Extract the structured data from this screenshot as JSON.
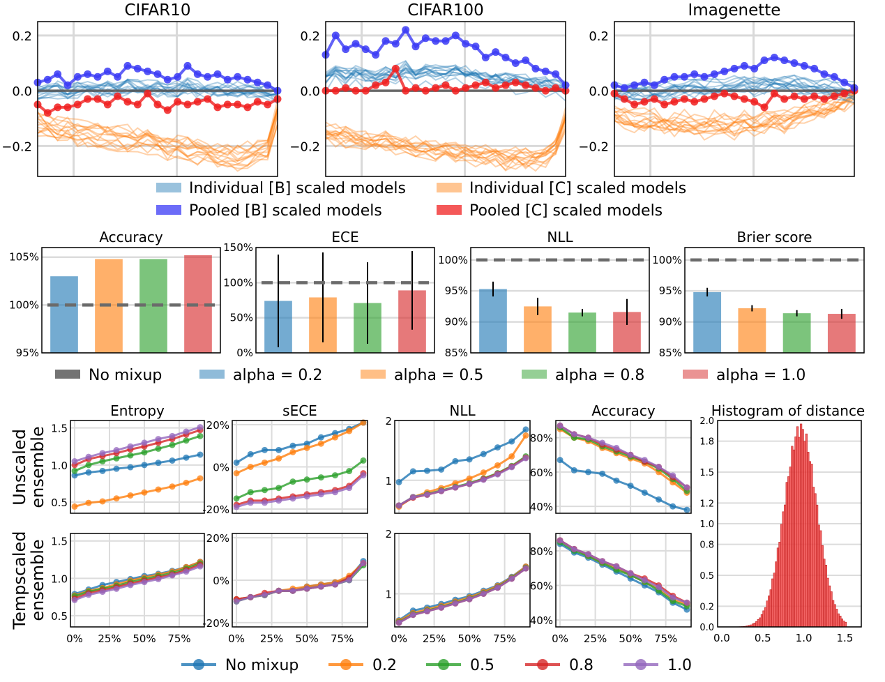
{
  "chart_data": [
    {
      "id": "row1",
      "type": "line",
      "panels": [
        {
          "title": "CIFAR10",
          "pooled_b": [
            0.03,
            0.04,
            0.06,
            0.02,
            0.05,
            0.06,
            0.05,
            0.07,
            0.05,
            0.09,
            0.08,
            0.07,
            0.06,
            0.04,
            0.05,
            0.09,
            0.06,
            0.05,
            0.06,
            0.04,
            0.05,
            0.04,
            0.03,
            0.02,
            0.0
          ],
          "pooled_c": [
            -0.05,
            -0.08,
            -0.06,
            -0.06,
            -0.05,
            -0.03,
            -0.03,
            -0.05,
            -0.02,
            -0.04,
            -0.05,
            -0.01,
            -0.05,
            -0.07,
            -0.04,
            -0.05,
            -0.04,
            -0.03,
            -0.06,
            -0.05,
            -0.05,
            -0.06,
            -0.04,
            -0.05,
            -0.03
          ],
          "ind_c_mean": [
            -0.12,
            -0.13,
            -0.14,
            -0.14,
            -0.15,
            -0.15,
            -0.16,
            -0.16,
            -0.17,
            -0.17,
            -0.18,
            -0.18,
            -0.19,
            -0.2,
            -0.2,
            -0.21,
            -0.22,
            -0.22,
            -0.23,
            -0.23,
            -0.24,
            -0.23,
            -0.22,
            -0.2,
            -0.08
          ]
        },
        {
          "title": "CIFAR100",
          "pooled_b": [
            0.13,
            0.2,
            0.15,
            0.17,
            0.15,
            0.13,
            0.18,
            0.17,
            0.22,
            0.16,
            0.19,
            0.18,
            0.18,
            0.2,
            0.17,
            0.16,
            0.12,
            0.14,
            0.12,
            0.1,
            0.11,
            0.08,
            0.07,
            0.06,
            0.02
          ],
          "pooled_c": [
            0.0,
            0.0,
            0.01,
            0.0,
            0.0,
            0.02,
            0.03,
            0.08,
            0.0,
            0.01,
            0.0,
            0.01,
            0.02,
            0.0,
            0.01,
            0.02,
            0.03,
            0.01,
            0.02,
            0.03,
            0.02,
            0.01,
            0.0,
            0.01,
            0.0
          ],
          "ind_c_mean": [
            -0.15,
            -0.16,
            -0.16,
            -0.17,
            -0.17,
            -0.18,
            -0.18,
            -0.19,
            -0.19,
            -0.2,
            -0.2,
            -0.21,
            -0.21,
            -0.22,
            -0.22,
            -0.23,
            -0.23,
            -0.23,
            -0.24,
            -0.24,
            -0.24,
            -0.24,
            -0.23,
            -0.2,
            -0.1
          ]
        },
        {
          "title": "Imagenette",
          "pooled_b": [
            0.02,
            0.01,
            0.02,
            0.03,
            0.02,
            0.04,
            0.05,
            0.05,
            0.06,
            0.05,
            0.06,
            0.07,
            0.08,
            0.09,
            0.08,
            0.11,
            0.12,
            0.11,
            0.1,
            0.09,
            0.08,
            0.06,
            0.05,
            0.03,
            0.01
          ],
          "pooled_c": [
            -0.01,
            -0.03,
            -0.05,
            -0.04,
            -0.03,
            -0.05,
            -0.04,
            -0.03,
            -0.04,
            -0.03,
            -0.02,
            -0.01,
            -0.02,
            -0.03,
            -0.04,
            -0.06,
            -0.01,
            -0.03,
            -0.02,
            -0.03,
            -0.02,
            -0.03,
            -0.02,
            -0.01,
            0.0
          ],
          "ind_c_mean": [
            -0.09,
            -0.1,
            -0.11,
            -0.11,
            -0.11,
            -0.12,
            -0.12,
            -0.12,
            -0.13,
            -0.13,
            -0.12,
            -0.13,
            -0.13,
            -0.12,
            -0.12,
            -0.12,
            -0.11,
            -0.11,
            -0.1,
            -0.09,
            -0.08,
            -0.07,
            -0.05,
            -0.04,
            -0.02
          ]
        }
      ],
      "yticks": [
        "0.2",
        "0.0",
        "−0.2"
      ],
      "ytick_values": [
        0.2,
        0.0,
        -0.2
      ],
      "ylim": [
        -0.31,
        0.25
      ],
      "legend": [
        "Individual [B] scaled models",
        "Individual [C] scaled models",
        "Pooled [B] scaled models",
        "Pooled [C] scaled models"
      ]
    },
    {
      "id": "row2",
      "type": "bar",
      "categories": [
        "alpha = 0.2",
        "alpha = 0.5",
        "alpha = 0.8",
        "alpha = 1.0"
      ],
      "reference_label": "No mixup",
      "panels": [
        {
          "title": "Accuracy",
          "values": [
            103,
            104.8,
            104.8,
            105.2
          ],
          "err": [
            0,
            0,
            0,
            0
          ],
          "yticks": [
            "105%",
            "100%",
            "95%"
          ],
          "ytick_values": [
            105,
            100,
            95
          ],
          "ylim": [
            95,
            106
          ],
          "ref": 100
        },
        {
          "title": "ECE",
          "values": [
            74,
            79,
            71,
            89
          ],
          "err": [
            66,
            64,
            58,
            56
          ],
          "yticks": [
            "150%",
            "100%",
            "50%",
            "0%"
          ],
          "ytick_values": [
            150,
            100,
            50,
            0
          ],
          "ylim": [
            0,
            150
          ],
          "ref": 100
        },
        {
          "title": "NLL",
          "values": [
            95.3,
            92.5,
            91.5,
            91.6
          ],
          "err": [
            1.2,
            1.4,
            0.6,
            2.1
          ],
          "yticks": [
            "100%",
            "95%",
            "90%",
            "85%"
          ],
          "ytick_values": [
            100,
            95,
            90,
            85
          ],
          "ylim": [
            85,
            102
          ],
          "ref": 100
        },
        {
          "title": "Brier score",
          "values": [
            94.8,
            92.2,
            91.4,
            91.3
          ],
          "err": [
            0.7,
            0.5,
            0.5,
            0.8
          ],
          "yticks": [
            "100%",
            "95%",
            "90%",
            "85%"
          ],
          "ytick_values": [
            100,
            95,
            90,
            85
          ],
          "ylim": [
            85,
            102
          ],
          "ref": 100
        }
      ],
      "legend": [
        "No mixup",
        "alpha = 0.2",
        "alpha = 0.5",
        "alpha = 0.8",
        "alpha = 1.0"
      ]
    },
    {
      "id": "row3",
      "type": "line",
      "x": [
        0,
        10,
        20,
        30,
        40,
        50,
        60,
        70,
        80,
        90
      ],
      "xticks": [
        "0%",
        "25%",
        "50%",
        "75%"
      ],
      "xtick_values": [
        0,
        25,
        50,
        75
      ],
      "row_labels": [
        [
          "Unscaled",
          "ensemble"
        ],
        [
          "Tempscaled",
          "ensemble"
        ]
      ],
      "series_names": [
        "No mixup",
        "0.2",
        "0.5",
        "0.8",
        "1.0"
      ],
      "columns": [
        {
          "title": "Entropy",
          "yticks": [
            "1.5",
            "1.0",
            "0.5"
          ],
          "ytick_values": [
            1.5,
            1.0,
            0.5
          ],
          "ylim": [
            0.35,
            1.6
          ],
          "unscaled": [
            [
              0.86,
              0.9,
              0.92,
              0.95,
              0.97,
              1.0,
              1.03,
              1.06,
              1.1,
              1.14
            ],
            [
              0.44,
              0.49,
              0.51,
              0.55,
              0.59,
              0.63,
              0.67,
              0.71,
              0.76,
              0.82
            ],
            [
              0.92,
              1.0,
              1.05,
              1.09,
              1.13,
              1.17,
              1.22,
              1.27,
              1.33,
              1.39
            ],
            [
              1.0,
              1.08,
              1.12,
              1.16,
              1.21,
              1.25,
              1.3,
              1.35,
              1.41,
              1.47
            ],
            [
              1.05,
              1.11,
              1.16,
              1.2,
              1.25,
              1.3,
              1.35,
              1.39,
              1.45,
              1.51
            ]
          ],
          "tempscaled": [
            [
              0.79,
              0.85,
              0.91,
              0.95,
              0.99,
              1.03,
              1.06,
              1.1,
              1.15,
              1.22
            ],
            [
              0.77,
              0.83,
              0.87,
              0.92,
              0.97,
              1.01,
              1.05,
              1.09,
              1.15,
              1.22
            ],
            [
              0.76,
              0.82,
              0.86,
              0.9,
              0.95,
              0.99,
              1.03,
              1.07,
              1.13,
              1.2
            ],
            [
              0.73,
              0.8,
              0.84,
              0.88,
              0.93,
              0.97,
              1.01,
              1.05,
              1.11,
              1.18
            ],
            [
              0.71,
              0.78,
              0.82,
              0.86,
              0.91,
              0.95,
              0.99,
              1.04,
              1.09,
              1.16
            ]
          ]
        },
        {
          "title": "sECE",
          "yticks": [
            "20%",
            "0%",
            "-20%"
          ],
          "ytick_values": [
            20,
            0,
            -20
          ],
          "ylim": [
            -22,
            22
          ],
          "unscaled": [
            [
              2,
              6,
              8,
              8,
              10,
              11,
              14,
              16,
              18,
              21
            ],
            [
              -3,
              0,
              2,
              4,
              7,
              9,
              11,
              14,
              17,
              21
            ],
            [
              -15,
              -12,
              -11,
              -10,
              -7,
              -6,
              -5,
              -4,
              -2,
              3
            ],
            [
              -18,
              -16,
              -16,
              -15,
              -14,
              -13,
              -12,
              -11,
              -9,
              -3
            ],
            [
              -19,
              -17,
              -17,
              -16,
              -15,
              -14,
              -13,
              -12,
              -10,
              -4
            ]
          ],
          "tempscaled": [
            [
              -9,
              -8,
              -7,
              -5,
              -5,
              -3,
              -2,
              -1,
              1,
              9
            ],
            [
              -9,
              -8,
              -7,
              -5,
              -4,
              -3,
              -2,
              -1,
              2,
              8
            ],
            [
              -10,
              -8,
              -7,
              -5,
              -5,
              -4,
              -3,
              -2,
              0,
              7
            ],
            [
              -9,
              -8,
              -6,
              -5,
              -5,
              -4,
              -3,
              -2,
              1,
              8
            ],
            [
              -10,
              -8,
              -7,
              -5,
              -5,
              -4,
              -3,
              -2,
              0,
              8
            ]
          ]
        },
        {
          "title": "NLL",
          "yticks": [
            "2",
            "1"
          ],
          "ytick_values": [
            2,
            1
          ],
          "ylim": [
            0.45,
            2.0
          ],
          "unscaled": [
            [
              0.97,
              1.15,
              1.16,
              1.18,
              1.32,
              1.35,
              1.44,
              1.55,
              1.65,
              1.85
            ],
            [
              0.56,
              0.72,
              0.8,
              0.87,
              0.95,
              1.03,
              1.13,
              1.25,
              1.4,
              1.75
            ],
            [
              0.58,
              0.72,
              0.77,
              0.83,
              0.89,
              0.95,
              1.03,
              1.12,
              1.24,
              1.4
            ],
            [
              0.58,
              0.71,
              0.76,
              0.82,
              0.88,
              0.94,
              1.02,
              1.11,
              1.23,
              1.38
            ],
            [
              0.58,
              0.72,
              0.76,
              0.82,
              0.88,
              0.94,
              1.01,
              1.1,
              1.22,
              1.37
            ]
          ],
          "tempscaled": [
            [
              0.56,
              0.72,
              0.77,
              0.83,
              0.9,
              0.96,
              1.05,
              1.14,
              1.28,
              1.45
            ],
            [
              0.55,
              0.68,
              0.74,
              0.8,
              0.87,
              0.94,
              1.03,
              1.13,
              1.27,
              1.45
            ],
            [
              0.53,
              0.66,
              0.72,
              0.78,
              0.85,
              0.92,
              1.01,
              1.11,
              1.26,
              1.43
            ],
            [
              0.52,
              0.65,
              0.71,
              0.77,
              0.84,
              0.91,
              1.0,
              1.1,
              1.25,
              1.42
            ],
            [
              0.52,
              0.65,
              0.71,
              0.77,
              0.84,
              0.91,
              1.0,
              1.1,
              1.25,
              1.42
            ]
          ]
        },
        {
          "title": "Accuracy",
          "yticks": [
            "80%",
            "60%",
            "40%"
          ],
          "ytick_values": [
            80,
            60,
            40
          ],
          "ylim": [
            36,
            90
          ],
          "unscaled": [
            [
              67,
              61,
              60,
              59,
              55,
              52,
              48,
              44,
              40,
              38
            ],
            [
              85,
              80,
              78,
              74,
              71,
              68,
              65,
              60,
              54,
              48
            ],
            [
              86,
              80,
              79,
              75,
              72,
              69,
              66,
              62,
              56,
              49
            ],
            [
              87,
              82,
              80,
              76,
              73,
              70,
              66,
              63,
              57,
              51
            ],
            [
              87,
              82,
              80,
              77,
              74,
              70,
              67,
              63,
              58,
              51
            ]
          ],
          "tempscaled": [
            [
              84,
              79,
              76,
              72,
              68,
              64,
              60,
              56,
              50,
              46
            ],
            [
              86,
              81,
              77,
              73,
              70,
              66,
              62,
              58,
              52,
              49
            ],
            [
              85,
              80,
              77,
              73,
              69,
              66,
              62,
              57,
              51,
              48
            ],
            [
              86,
              81,
              78,
              74,
              71,
              67,
              64,
              60,
              54,
              50
            ],
            [
              86,
              81,
              78,
              74,
              71,
              67,
              63,
              59,
              53,
              50
            ]
          ]
        }
      ],
      "histogram": {
        "title": "Histogram of distance",
        "xticks": [
          "0.0",
          "0.5",
          "1.0",
          "1.5"
        ],
        "xtick_values": [
          0,
          0.5,
          1.0,
          1.5
        ],
        "yticks": [
          "2.0",
          "1.8",
          "1.5",
          "1.2",
          "1.0",
          "0.8",
          "0.5",
          "0.2",
          "0.0"
        ],
        "ytick_values": [
          2.0,
          1.8,
          1.5,
          1.2,
          1.0,
          0.8,
          0.5,
          0.2,
          0.0
        ],
        "xlim": [
          -0.05,
          1.7
        ],
        "ylim": [
          0,
          2.0
        ],
        "mean": 0.96,
        "sd": 0.2,
        "peak": 1.92
      }
    }
  ],
  "colors": {
    "blue": "#1f77b4",
    "orange": "#ff7f0e",
    "green": "#2ca02c",
    "red": "#d62728",
    "purple": "#9467bd",
    "pooled_b": "#3b3bf5",
    "pooled_c": "#f02020",
    "ref": "#6b6b6b"
  }
}
